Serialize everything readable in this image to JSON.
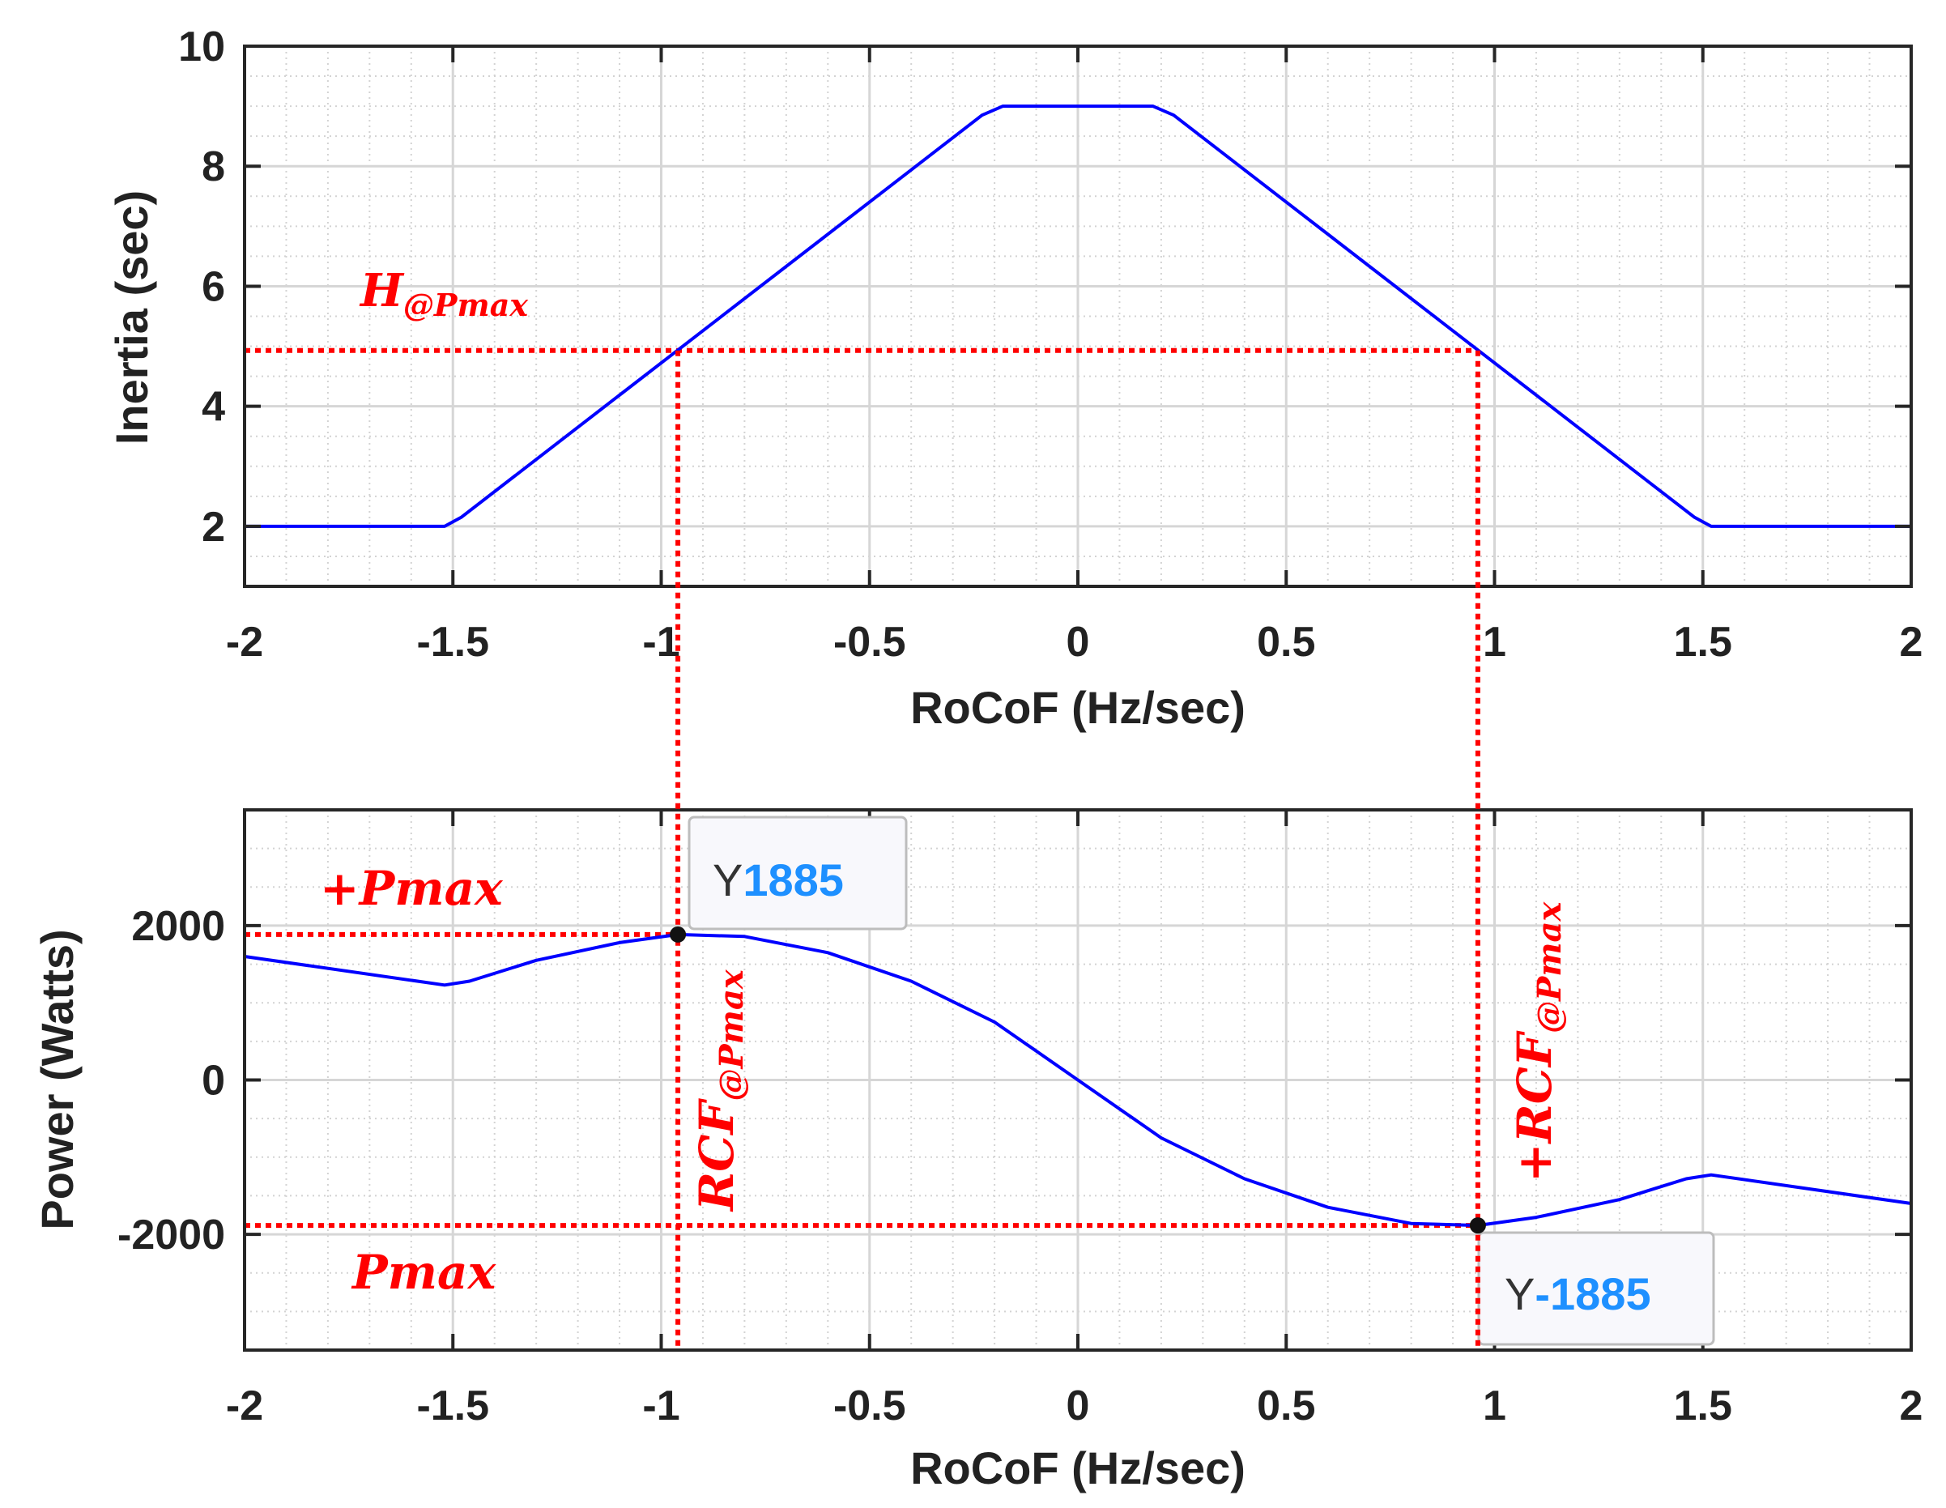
{
  "chart_data": [
    {
      "id": "inertia",
      "type": "line",
      "xlabel": "RoCoF (Hz/sec)",
      "ylabel": "Inertia (sec)",
      "xlim": [
        -2,
        2
      ],
      "ylim": [
        1,
        10
      ],
      "xticks": [
        -2,
        -1.5,
        -1,
        -0.5,
        0,
        0.5,
        1,
        1.5,
        2
      ],
      "yticks": [
        2,
        4,
        6,
        8,
        10
      ],
      "xtick_labels": [
        "-2",
        "-1.5",
        "-1",
        "-0.5",
        "0",
        "0.5",
        "1",
        "1.5",
        "2"
      ],
      "ytick_labels": [
        "2",
        "4",
        "6",
        "8",
        "10"
      ],
      "grid": true,
      "series": [
        {
          "name": "Inertia",
          "color": "#0000ff",
          "x": [
            -2,
            -1.52,
            -1.48,
            -0.23,
            -0.18,
            0.18,
            0.23,
            1.48,
            1.52,
            2
          ],
          "y": [
            2,
            2,
            2.15,
            8.85,
            9,
            9,
            8.85,
            2.15,
            2,
            2
          ]
        }
      ],
      "guides": {
        "h_level": 4.93,
        "x_left": -0.96,
        "x_right": 0.96,
        "color": "#ff0000"
      },
      "annotations": [
        {
          "main": "H",
          "sub": "@Pmax"
        }
      ]
    },
    {
      "id": "power",
      "type": "line",
      "xlabel": "RoCoF (Hz/sec)",
      "ylabel": "Power (Watts)",
      "xlim": [
        -2,
        2
      ],
      "ylim": [
        -3500,
        3500
      ],
      "xticks": [
        -2,
        -1.5,
        -1,
        -0.5,
        0,
        0.5,
        1,
        1.5,
        2
      ],
      "yticks": [
        -2000,
        0,
        2000
      ],
      "xtick_labels": [
        "-2",
        "-1.5",
        "-1",
        "-0.5",
        "0",
        "0.5",
        "1",
        "1.5",
        "2"
      ],
      "ytick_labels": [
        "-2000",
        "0",
        "2000"
      ],
      "grid": true,
      "series": [
        {
          "name": "Power",
          "color": "#0000ff",
          "x": [
            -2,
            -1.52,
            -1.46,
            -1.3,
            -1.1,
            -0.96,
            -0.8,
            -0.6,
            -0.4,
            -0.2,
            0,
            0.2,
            0.4,
            0.6,
            0.8,
            0.96,
            1.1,
            1.3,
            1.46,
            1.52,
            2
          ],
          "y": [
            1600,
            1230,
            1280,
            1550,
            1780,
            1885,
            1860,
            1650,
            1280,
            750,
            0,
            -750,
            -1280,
            -1650,
            -1860,
            -1885,
            -1780,
            -1550,
            -1280,
            -1230,
            -1600
          ]
        }
      ],
      "guides": {
        "y_pos": 1885,
        "y_neg": -1885,
        "x_left": -0.96,
        "x_right": 0.96,
        "color": "#ff0000"
      },
      "datatips": [
        {
          "x": -0.96,
          "y": 1885,
          "key": "Y",
          "value": "1885"
        },
        {
          "x": 0.96,
          "y": -1885,
          "key": "Y",
          "value": "-1885"
        }
      ],
      "annotations": [
        {
          "main": "+Pmax",
          "sub": ""
        },
        {
          "main": "Pmax",
          "sub": ""
        },
        {
          "main": "RCF",
          "sub": "@Pmax"
        },
        {
          "main": "+RCF",
          "sub": "@Pmax"
        }
      ]
    }
  ]
}
